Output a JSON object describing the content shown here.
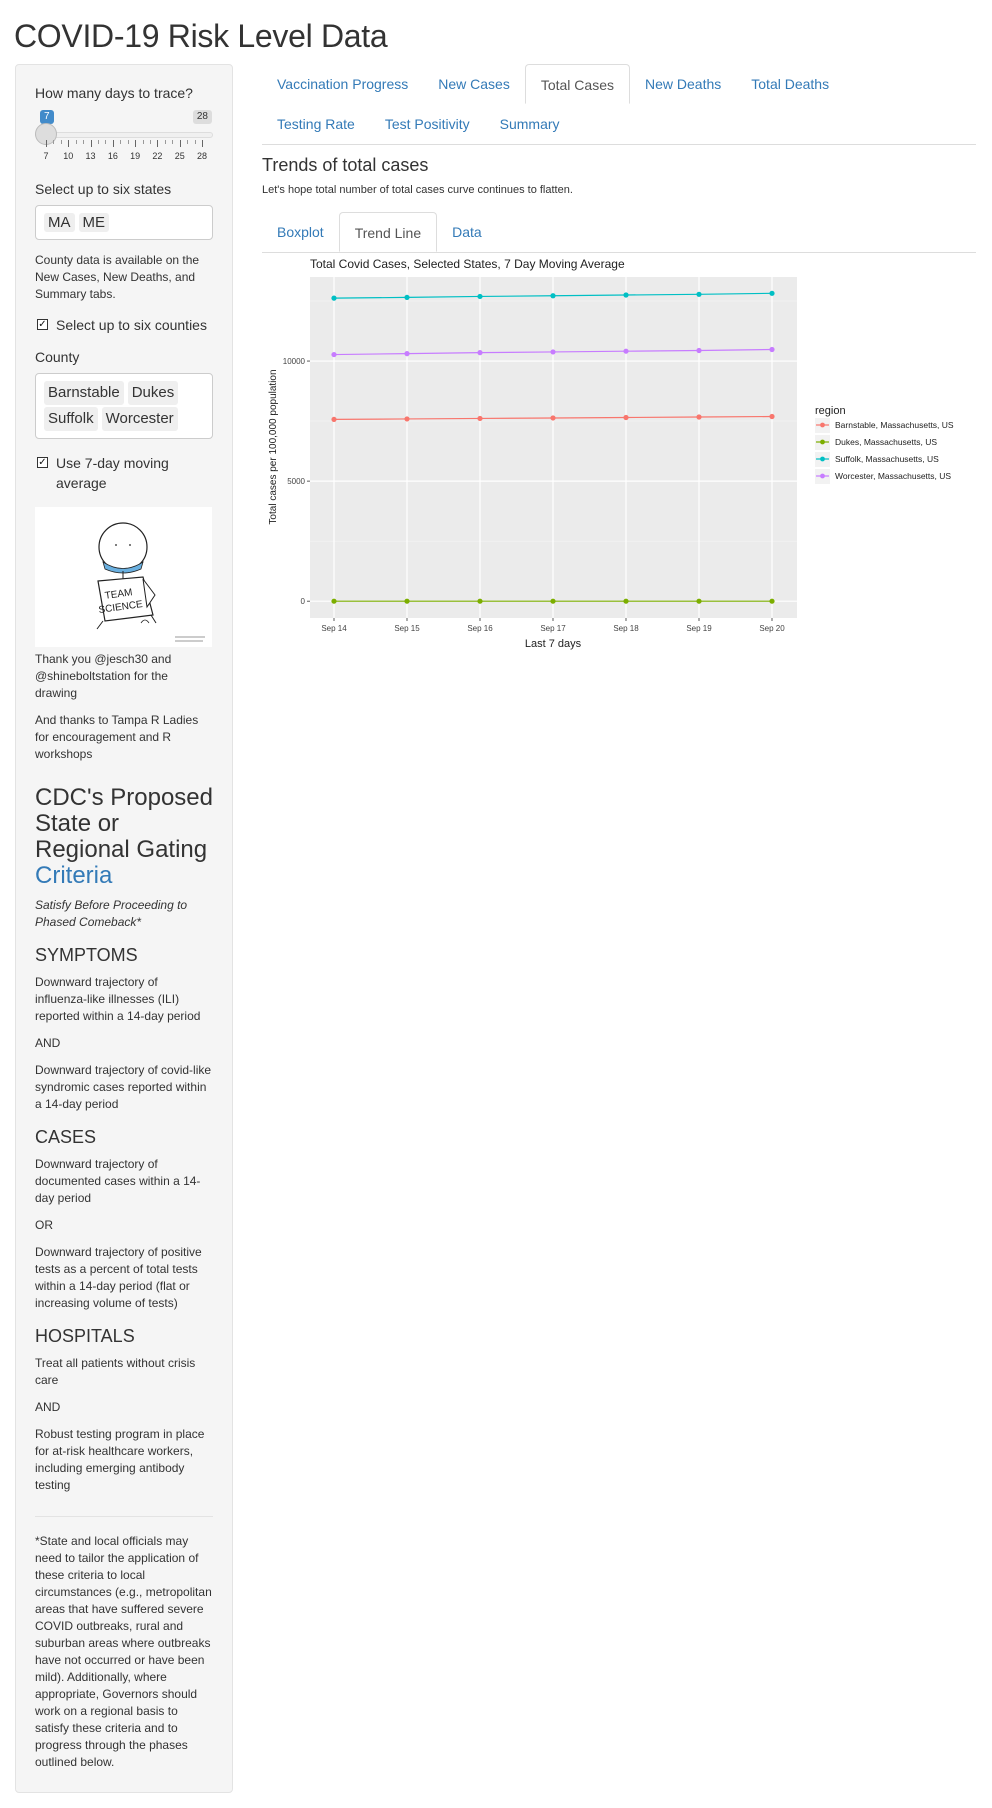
{
  "app": {
    "title": "COVID-19 Risk Level Data"
  },
  "sidebar": {
    "days_label": "How many days to trace?",
    "slider": {
      "min": 7,
      "max": 28,
      "value": 7,
      "min_label": "7",
      "max_label": "28",
      "ticks": [
        "7",
        "10",
        "13",
        "16",
        "19",
        "22",
        "25",
        "28"
      ]
    },
    "states_label": "Select up to six states",
    "states": [
      "MA",
      "ME"
    ],
    "county_note": "County data is available on the New Cases, New Deaths, and Summary tabs.",
    "select_counties": {
      "label": "Select up to six counties",
      "checked": true
    },
    "county_label": "County",
    "counties": [
      "Barnstable",
      "Dukes",
      "Suffolk",
      "Worcester"
    ],
    "moving_avg": {
      "label": "Use 7-day moving average",
      "checked": true
    },
    "drawing_text": [
      "TEAM",
      "SCIENCE"
    ],
    "thanks_1": "Thank you @jesch30 and @shineboltstation for the drawing",
    "thanks_2": "And thanks to Tampa R Ladies for encouragement and R workshops",
    "cdc_title": "CDC's Proposed State or Regional Gating ",
    "cdc_title_link": "Criteria",
    "cdc_subtitle": "Satisfy Before Proceeding to Phased Comeback*",
    "symptoms_title": "SYMPTOMS",
    "symptoms_1": "Downward trajectory of influenza-like illnesses (ILI) reported within a 14-day period",
    "and_1": "AND",
    "symptoms_2": "Downward trajectory of covid-like syndromic cases reported within a 14-day period",
    "cases_title": "CASES",
    "cases_1": "Downward trajectory of documented cases within a 14-day period",
    "or_1": "OR",
    "cases_2": "Downward trajectory of positive tests as a percent of total tests within a 14-day period (flat or increasing volume of tests)",
    "hospitals_title": "HOSPITALS",
    "hospitals_1": "Treat all patients without crisis care",
    "and_2": "AND",
    "hospitals_2": "Robust testing program in place for at-risk healthcare workers, including emerging antibody testing",
    "footnote": "*State and local officials may need to tailor the application of these criteria to local circumstances (e.g., metropolitan areas that have suffered severe COVID outbreaks, rural and suburban areas where outbreaks have not occurred or have been mild). Additionally, where appropriate, Governors should work on a regional basis to satisfy these criteria and to progress through the phases outlined below."
  },
  "main": {
    "tabs_row1": [
      "Vaccination Progress",
      "New Cases",
      "Total Cases",
      "New Deaths",
      "Total Deaths"
    ],
    "tabs_row2": [
      "Testing Rate",
      "Test Positivity",
      "Summary"
    ],
    "active_tab": "Total Cases",
    "panel_title": "Trends of total cases",
    "panel_desc": "Let's hope total number of total cases curve continues to flatten.",
    "subtabs": [
      "Boxplot",
      "Trend Line",
      "Data"
    ],
    "active_subtab": "Trend Line"
  },
  "chart_data": {
    "type": "line",
    "title": "Total Covid Cases, Selected States, 7 Day Moving Average",
    "xlabel": "Last 7 days",
    "ylabel": "Total cases per 100,000 population",
    "categories": [
      "Sep 14",
      "Sep 15",
      "Sep 16",
      "Sep 17",
      "Sep 18",
      "Sep 19",
      "Sep 20"
    ],
    "ylim": [
      -700,
      13500
    ],
    "yticks": [
      0,
      5000,
      10000
    ],
    "ytick_labels": [
      "0",
      "5000",
      "10000"
    ],
    "grid": true,
    "legend_title": "region",
    "legend_position": "right",
    "series": [
      {
        "name": "Barnstable, Massachusetts, US",
        "color": "#F8766D",
        "values": [
          7570,
          7590,
          7610,
          7630,
          7650,
          7670,
          7690
        ]
      },
      {
        "name": "Dukes, Massachusetts, US",
        "color": "#7CAE00",
        "values": [
          0,
          0,
          0,
          0,
          0,
          0,
          0
        ]
      },
      {
        "name": "Suffolk, Massachusetts, US",
        "color": "#00BFC4",
        "values": [
          12620,
          12650,
          12690,
          12720,
          12750,
          12780,
          12820
        ]
      },
      {
        "name": "Worcester, Massachusetts, US",
        "color": "#C77CFF",
        "values": [
          10270,
          10310,
          10350,
          10380,
          10410,
          10440,
          10480
        ]
      }
    ]
  }
}
